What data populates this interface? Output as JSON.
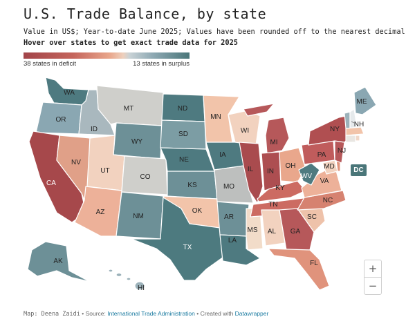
{
  "header": {
    "title": "U.S. Trade Balance, by state",
    "subtitle": "Value in US$; Year-to-date June 2025; Values have been rounded off to the nearest decimal",
    "instruction": "Hover over states to get exact trade data for 2025"
  },
  "legend": {
    "left_label": "38 states in deficit",
    "right_label": "13 states in surplus",
    "deficit_color": "#a24449",
    "surplus_color": "#4a7679"
  },
  "states": {
    "WA": "WA",
    "OR": "OR",
    "CA": "CA",
    "NV": "NV",
    "ID": "ID",
    "MT": "MT",
    "WY": "WY",
    "UT": "UT",
    "AZ": "AZ",
    "CO": "CO",
    "NM": "NM",
    "ND": "ND",
    "SD": "SD",
    "NE": "NE",
    "KS": "KS",
    "OK": "OK",
    "TX": "TX",
    "MN": "MN",
    "IA": "IA",
    "MO": "MO",
    "AR": "AR",
    "LA": "LA",
    "WI": "WI",
    "IL": "IL",
    "MS": "MS",
    "MI": "MI",
    "IN": "IN",
    "OH": "OH",
    "KY": "KY",
    "TN": "TN",
    "AL": "AL",
    "GA": "GA",
    "FL": "FL",
    "SC": "SC",
    "NC": "NC",
    "VA": "VA",
    "WV": "WV",
    "PA": "PA",
    "NY": "NY",
    "NJ": "NJ",
    "MD": "MD",
    "ME": "ME",
    "NH": "NH",
    "AK": "AK",
    "HI": "HI",
    "DC": "DC"
  },
  "zoom": {
    "in": "+",
    "out": "−"
  },
  "footer": {
    "map_by": "Map: Deena Zaidi",
    "sep1": " • Source: ",
    "source": "International Trade Administration",
    "sep2": " • Created with ",
    "tool": "Datawrapper"
  }
}
